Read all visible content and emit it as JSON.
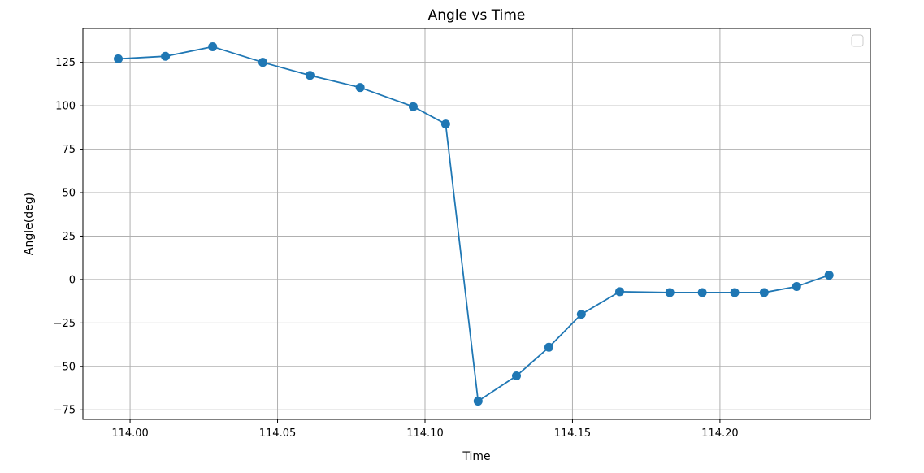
{
  "chart_data": {
    "type": "line",
    "title": "Angle vs Time",
    "xlabel": "Time",
    "ylabel": "Angle(deg)",
    "xlim": [
      113.984,
      114.251
    ],
    "ylim": [
      -80.5,
      144.5
    ],
    "xticks": [
      114.0,
      114.05,
      114.1,
      114.15,
      114.2
    ],
    "xtick_labels": [
      "114.00",
      "114.05",
      "114.10",
      "114.15",
      "114.20"
    ],
    "yticks": [
      -75,
      -50,
      -25,
      0,
      25,
      50,
      75,
      100,
      125
    ],
    "ytick_labels": [
      "−75",
      "−50",
      "−25",
      "0",
      "25",
      "50",
      "75",
      "100",
      "125"
    ],
    "grid": true,
    "legend": {
      "placement": "top-right",
      "entries": []
    },
    "series": [
      {
        "color": "#1f77b4",
        "marker": "circle",
        "x": [
          113.996,
          114.012,
          114.028,
          114.045,
          114.061,
          114.078,
          114.096,
          114.107,
          114.118,
          114.131,
          114.142,
          114.153,
          114.166,
          114.183,
          114.194,
          114.205,
          114.215,
          114.226,
          114.237
        ],
        "y": [
          127,
          128.5,
          134,
          125,
          117.5,
          110.5,
          99.5,
          89.5,
          -70,
          -55.5,
          -39,
          -20,
          -7,
          -7.5,
          -7.5,
          -7.5,
          -7.5,
          -4,
          2.5
        ]
      }
    ]
  }
}
